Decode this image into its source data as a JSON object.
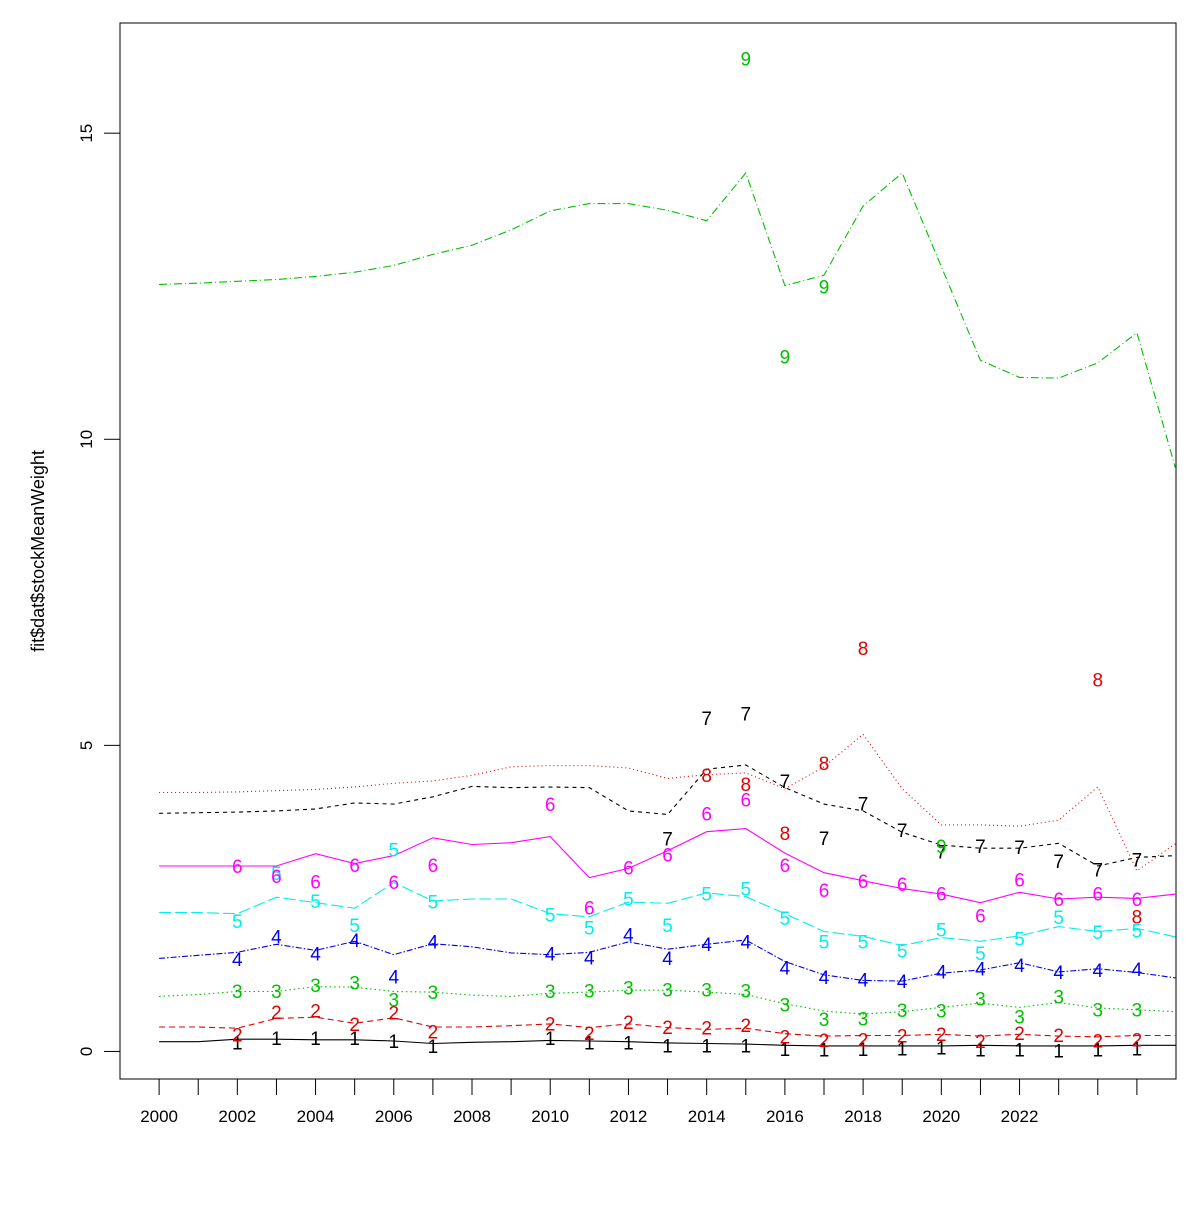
{
  "chart_data": {
    "type": "line",
    "title": "",
    "xlabel": "",
    "ylabel": "fit$dat$stockMeanWeight",
    "xlim": [
      1999,
      2026
    ],
    "ylim": [
      -0.45,
      16.8
    ],
    "x_ticks": [
      2000,
      2001,
      2002,
      2003,
      2004,
      2005,
      2006,
      2007,
      2008,
      2009,
      2010,
      2011,
      2012,
      2013,
      2014,
      2015,
      2016,
      2017,
      2018,
      2019,
      2020,
      2021,
      2022,
      2023,
      2024,
      2025
    ],
    "x_tick_labels": [
      "2000",
      "",
      "2002",
      "",
      "2004",
      "",
      "2006",
      "",
      "2008",
      "",
      "2010",
      "",
      "2012",
      "",
      "2014",
      "",
      "2016",
      "",
      "2018",
      "",
      "2020",
      "",
      "2022",
      "",
      "",
      ""
    ],
    "y_ticks": [
      0,
      5,
      10,
      15
    ],
    "y_tick_labels": [
      "0",
      "5",
      "10",
      "15"
    ],
    "grid": false,
    "legend": "none",
    "x": [
      2000,
      2001,
      2002,
      2003,
      2004,
      2005,
      2006,
      2007,
      2008,
      2009,
      2010,
      2011,
      2012,
      2013,
      2014,
      2015,
      2016,
      2017,
      2018,
      2019,
      2020,
      2021,
      2022,
      2023,
      2024,
      2025,
      2026
    ],
    "series": [
      {
        "label": "1",
        "color": "#000000",
        "dash": "solid",
        "line": [
          0.16,
          0.16,
          0.2,
          0.2,
          0.19,
          0.19,
          0.17,
          0.13,
          0.15,
          0.16,
          0.18,
          0.17,
          0.16,
          0.14,
          0.13,
          0.12,
          0.1,
          0.09,
          0.09,
          0.09,
          0.09,
          0.1,
          0.09,
          0.09,
          0.09,
          0.1,
          0.1
        ],
        "obs_x": [
          2002,
          2003,
          2004,
          2005,
          2006,
          2007,
          2010,
          2011,
          2012,
          2013,
          2014,
          2015,
          2016,
          2017,
          2018,
          2019,
          2020,
          2021,
          2022,
          2023,
          2024,
          2025
        ],
        "obs": [
          0.14,
          0.21,
          0.21,
          0.21,
          0.16,
          0.08,
          0.21,
          0.14,
          0.14,
          0.09,
          0.09,
          0.09,
          0.03,
          0.02,
          0.03,
          0.04,
          0.06,
          0.02,
          0.02,
          0.01,
          0.02,
          0.04
        ]
      },
      {
        "label": "2",
        "color": "#df0000",
        "dash": "6,4",
        "line": [
          0.4,
          0.4,
          0.38,
          0.54,
          0.56,
          0.46,
          0.55,
          0.4,
          0.4,
          0.42,
          0.45,
          0.39,
          0.45,
          0.39,
          0.36,
          0.38,
          0.29,
          0.25,
          0.26,
          0.26,
          0.28,
          0.25,
          0.28,
          0.25,
          0.24,
          0.26,
          0.26
        ],
        "obs_x": [
          2002,
          2003,
          2004,
          2005,
          2006,
          2007,
          2010,
          2011,
          2012,
          2013,
          2014,
          2015,
          2016,
          2017,
          2018,
          2019,
          2020,
          2021,
          2022,
          2023,
          2024,
          2025
        ],
        "obs": [
          0.27,
          0.64,
          0.66,
          0.44,
          0.63,
          0.32,
          0.45,
          0.29,
          0.47,
          0.39,
          0.38,
          0.42,
          0.24,
          0.18,
          0.19,
          0.25,
          0.28,
          0.16,
          0.29,
          0.26,
          0.17,
          0.19
        ]
      },
      {
        "label": "3",
        "color": "#00c000",
        "dash": "1.5,3",
        "line": [
          0.9,
          0.93,
          0.98,
          0.98,
          1.06,
          1.05,
          0.98,
          0.97,
          0.92,
          0.9,
          0.95,
          0.97,
          1.0,
          1.0,
          0.97,
          0.93,
          0.78,
          0.66,
          0.61,
          0.65,
          0.72,
          0.79,
          0.72,
          0.8,
          0.71,
          0.68,
          0.65
        ],
        "obs_x": [
          2002,
          2003,
          2004,
          2005,
          2006,
          2007,
          2010,
          2011,
          2012,
          2013,
          2014,
          2015,
          2016,
          2017,
          2018,
          2019,
          2020,
          2021,
          2022,
          2023,
          2024,
          2025
        ],
        "obs": [
          0.98,
          0.98,
          1.08,
          1.12,
          0.84,
          0.96,
          0.98,
          0.99,
          1.04,
          1.0,
          1.0,
          0.99,
          0.76,
          0.52,
          0.53,
          0.67,
          0.66,
          0.86,
          0.56,
          0.89,
          0.68,
          0.68
        ]
      },
      {
        "label": "4",
        "color": "#0000ee",
        "dash": "6,2,1.5,2",
        "line": [
          1.52,
          1.57,
          1.62,
          1.75,
          1.65,
          1.8,
          1.58,
          1.76,
          1.71,
          1.61,
          1.58,
          1.62,
          1.79,
          1.67,
          1.75,
          1.82,
          1.47,
          1.25,
          1.16,
          1.15,
          1.28,
          1.33,
          1.45,
          1.3,
          1.35,
          1.29,
          1.2
        ],
        "obs_x": [
          2002,
          2003,
          2004,
          2005,
          2006,
          2007,
          2010,
          2011,
          2012,
          2013,
          2014,
          2015,
          2016,
          2017,
          2018,
          2019,
          2020,
          2021,
          2022,
          2023,
          2024,
          2025
        ],
        "obs": [
          1.5,
          1.87,
          1.59,
          1.81,
          1.22,
          1.79,
          1.59,
          1.53,
          1.9,
          1.52,
          1.75,
          1.79,
          1.36,
          1.21,
          1.17,
          1.14,
          1.3,
          1.35,
          1.4,
          1.29,
          1.32,
          1.34
        ]
      },
      {
        "label": "5",
        "color": "#00eeee",
        "dash": "12,4",
        "line": [
          2.27,
          2.27,
          2.25,
          2.52,
          2.43,
          2.34,
          2.76,
          2.46,
          2.49,
          2.49,
          2.25,
          2.2,
          2.44,
          2.42,
          2.59,
          2.53,
          2.25,
          1.96,
          1.88,
          1.73,
          1.86,
          1.8,
          1.89,
          2.04,
          1.96,
          2.01,
          1.87
        ],
        "obs_x": [
          2002,
          2003,
          2004,
          2005,
          2006,
          2007,
          2010,
          2011,
          2012,
          2013,
          2014,
          2015,
          2016,
          2017,
          2018,
          2019,
          2020,
          2021,
          2022,
          2023,
          2024,
          2025
        ],
        "obs": [
          2.12,
          2.91,
          2.45,
          2.06,
          3.29,
          2.44,
          2.23,
          2.02,
          2.49,
          2.06,
          2.57,
          2.65,
          2.17,
          1.79,
          1.79,
          1.64,
          1.98,
          1.6,
          1.84,
          2.19,
          1.94,
          1.97
        ]
      },
      {
        "label": "6",
        "color": "#ff00ff",
        "dash": "solid",
        "line": [
          3.03,
          3.03,
          3.03,
          3.03,
          3.23,
          3.07,
          3.2,
          3.49,
          3.38,
          3.41,
          3.51,
          2.84,
          2.99,
          3.28,
          3.59,
          3.64,
          3.24,
          2.92,
          2.79,
          2.66,
          2.57,
          2.43,
          2.6,
          2.49,
          2.52,
          2.5,
          2.57
        ],
        "obs_x": [
          2002,
          2003,
          2004,
          2005,
          2006,
          2007,
          2010,
          2011,
          2012,
          2013,
          2014,
          2015,
          2016,
          2017,
          2018,
          2019,
          2020,
          2021,
          2022,
          2023,
          2024,
          2025
        ],
        "obs": [
          3.02,
          2.86,
          2.77,
          3.04,
          2.76,
          3.04,
          4.03,
          2.34,
          3.0,
          3.21,
          3.88,
          4.11,
          3.04,
          2.63,
          2.78,
          2.73,
          2.57,
          2.21,
          2.8,
          2.48,
          2.57,
          2.48
        ]
      },
      {
        "label": "7",
        "color": "#000000",
        "dash": "4,4",
        "line": [
          3.89,
          3.9,
          3.91,
          3.93,
          3.96,
          4.06,
          4.04,
          4.16,
          4.33,
          4.31,
          4.32,
          4.31,
          3.93,
          3.87,
          4.61,
          4.68,
          4.31,
          4.04,
          3.93,
          3.58,
          3.37,
          3.32,
          3.32,
          3.4,
          3.03,
          3.17,
          3.2
        ],
        "obs_x": [
          2013,
          2014,
          2015,
          2016,
          2017,
          2018,
          2019,
          2020,
          2021,
          2022,
          2023,
          2024,
          2025
        ],
        "obs": [
          3.47,
          5.44,
          5.51,
          4.41,
          3.48,
          4.04,
          3.61,
          3.26,
          3.35,
          3.33,
          3.1,
          2.96,
          3.13
        ]
      },
      {
        "label": "8",
        "color": "#df0000",
        "dash": "1,3",
        "line": [
          4.23,
          4.23,
          4.24,
          4.26,
          4.28,
          4.32,
          4.38,
          4.42,
          4.51,
          4.65,
          4.67,
          4.67,
          4.63,
          4.46,
          4.52,
          4.55,
          4.29,
          4.65,
          5.18,
          4.29,
          3.7,
          3.7,
          3.68,
          3.78,
          4.32,
          2.95,
          3.4
        ],
        "obs_x": [
          2014,
          2015,
          2016,
          2017,
          2018,
          2024,
          2025
        ],
        "obs": [
          4.51,
          4.36,
          3.56,
          4.7,
          6.58,
          6.07,
          2.2
        ]
      },
      {
        "label": "9",
        "color": "#00c000",
        "dash": "8,3,1,3",
        "line": [
          12.53,
          12.55,
          12.58,
          12.61,
          12.66,
          12.73,
          12.84,
          13.02,
          13.17,
          13.42,
          13.73,
          13.85,
          13.85,
          13.74,
          13.57,
          14.35,
          12.51,
          12.68,
          13.81,
          14.35,
          12.82,
          11.29,
          11.01,
          11.0,
          11.25,
          11.74,
          9.5
        ],
        "obs_x": [
          2015,
          2016,
          2017,
          2020
        ],
        "obs": [
          16.21,
          11.34,
          12.49,
          3.35
        ]
      }
    ]
  }
}
